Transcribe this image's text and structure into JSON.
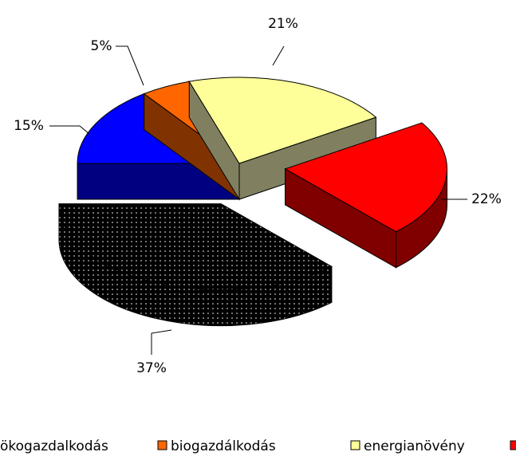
{
  "chart_data": {
    "type": "pie3d",
    "categories": [
      "ökogazdalkodás",
      "biogazdálkodás",
      "energianövény",
      null,
      null
    ],
    "values": [
      15,
      5,
      21,
      22,
      37
    ],
    "value_labels": [
      "15%",
      "5%",
      "21%",
      "22%",
      "37%"
    ],
    "colors": [
      "#0000ff",
      "#ff6600",
      "#ffff99",
      "#ff0000",
      "#000000"
    ],
    "side_colors": [
      "#000080",
      "#803300",
      "#808060",
      "#800000",
      "#000000"
    ],
    "patterns": [
      null,
      null,
      null,
      null,
      "dots"
    ],
    "exploded": [
      false,
      false,
      false,
      true,
      true
    ],
    "legend": "bottom"
  }
}
